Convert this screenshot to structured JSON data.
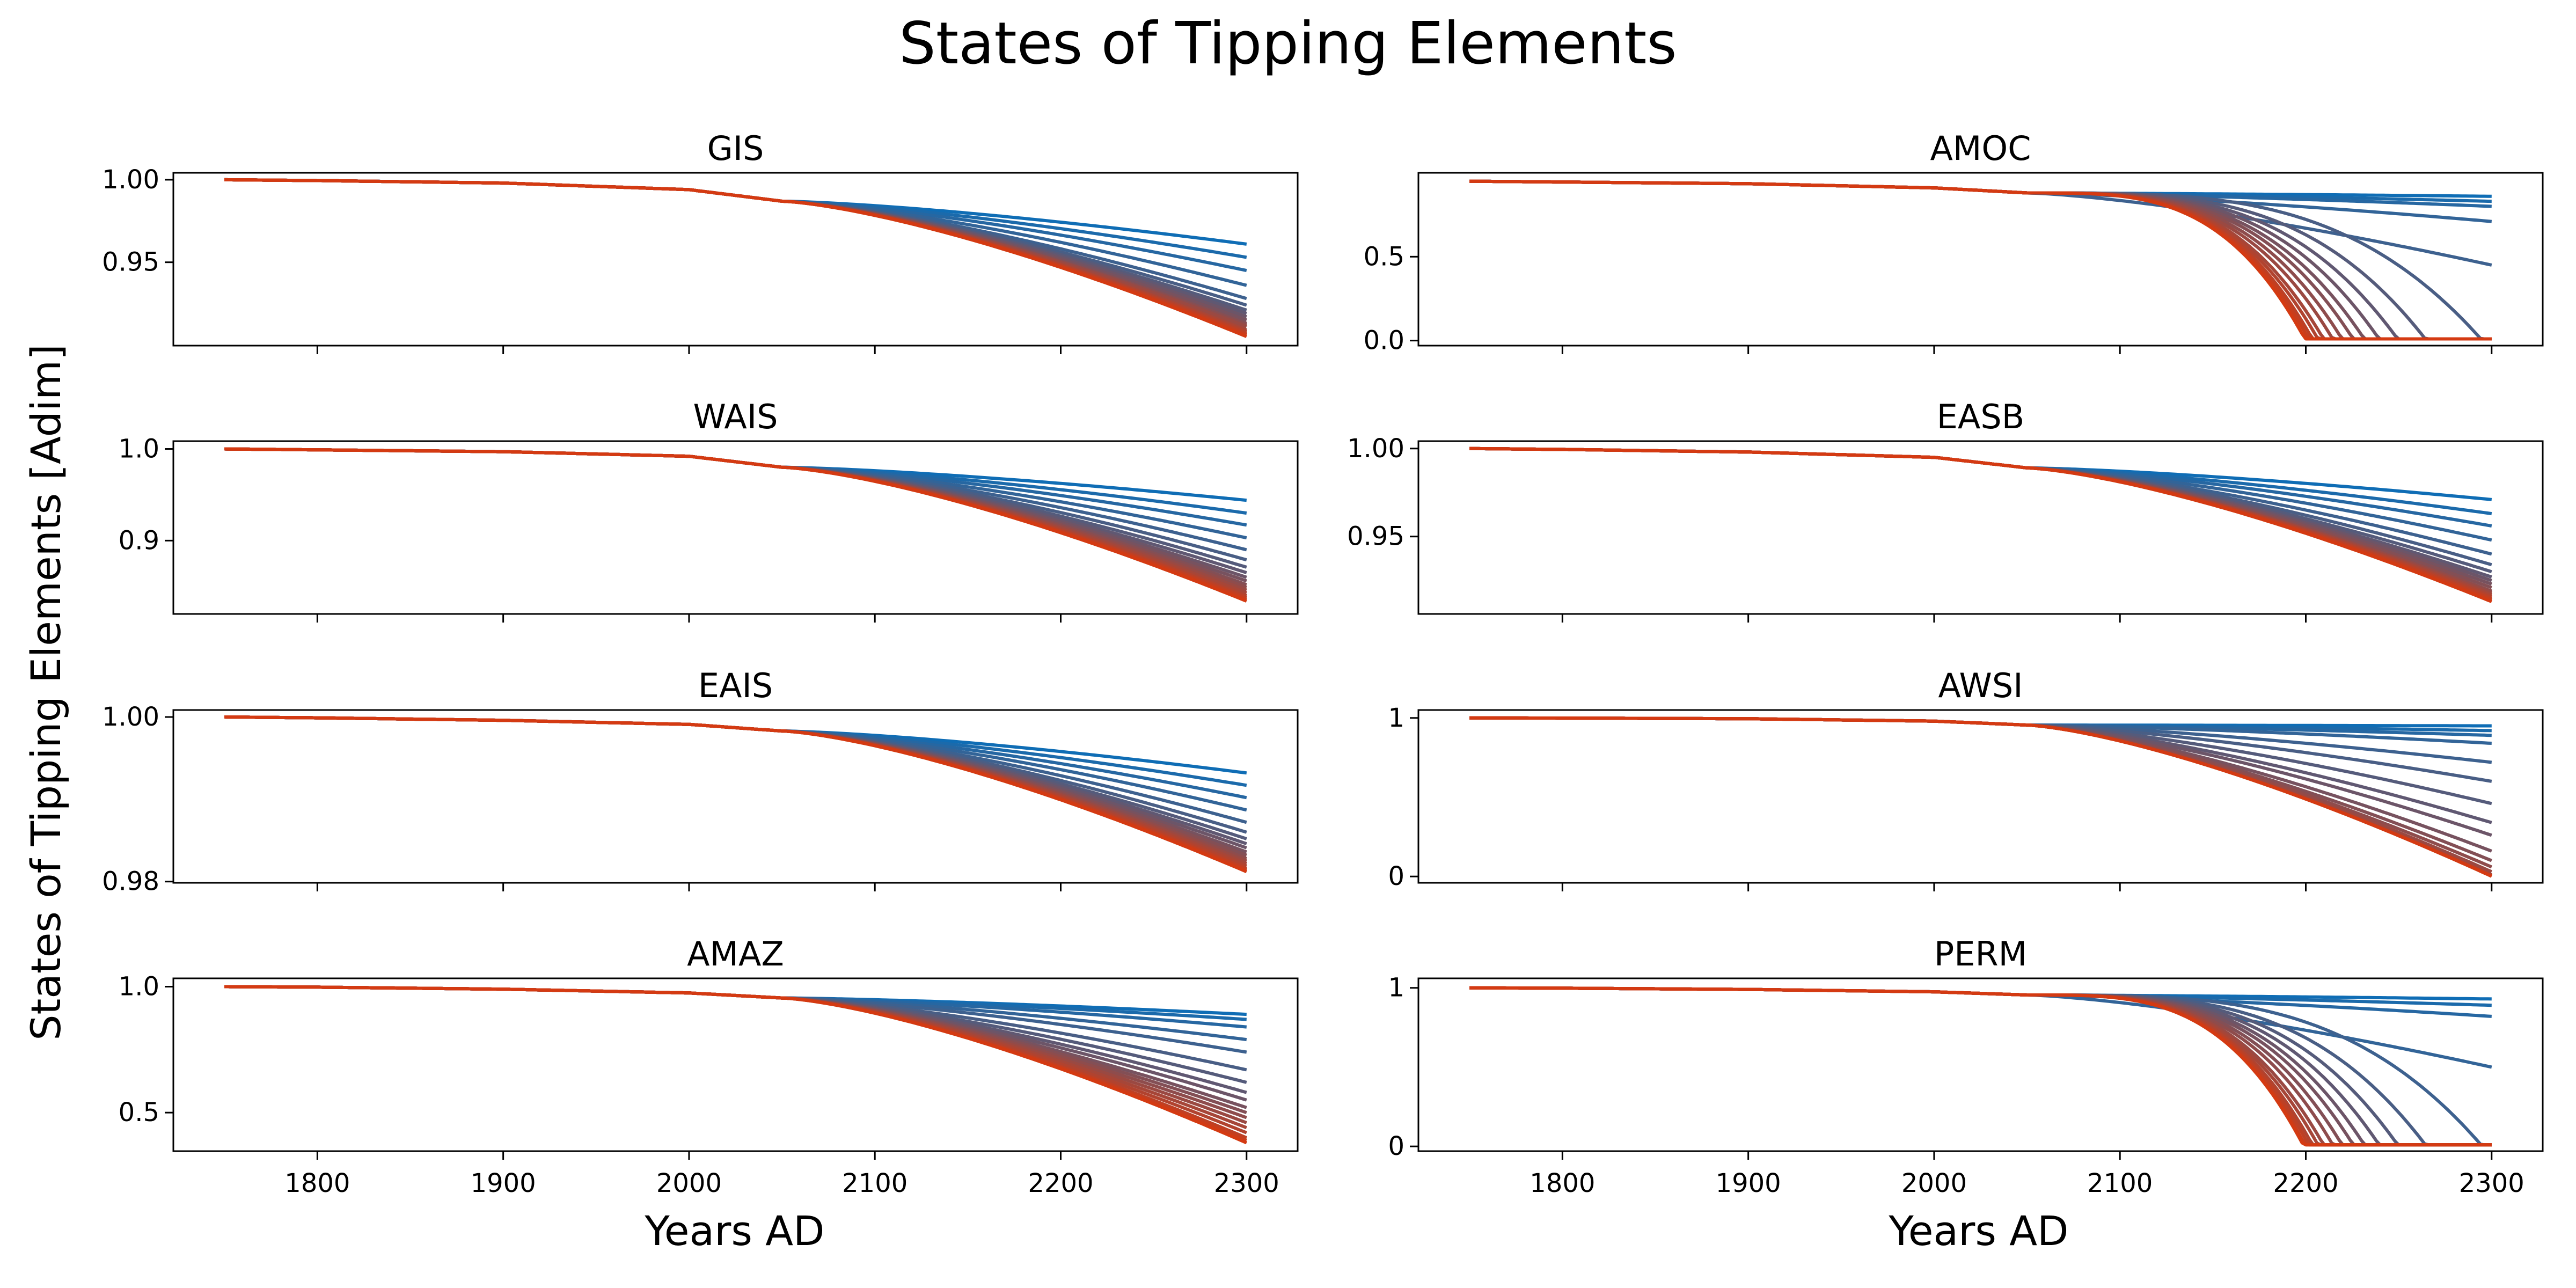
{
  "figure": {
    "title": "States of Tipping Elements",
    "ylabel": "States of Tipping Elements [Adim]",
    "xlabels": [
      "Years AD",
      "Years AD"
    ]
  },
  "colors": {
    "start": "#0f6db5",
    "end": "#d43a12",
    "axis": "#000000",
    "background": "#ffffff"
  },
  "chart_data": [
    {
      "type": "line",
      "title": "GIS",
      "x_range": [
        1750,
        2300
      ],
      "xlim": [
        1722.5,
        2327.5
      ],
      "ylim": [
        0.8995,
        1.0042
      ],
      "yticks": [
        {
          "v": 1.0,
          "label": "1.00"
        },
        {
          "v": 0.95,
          "label": "0.95"
        }
      ],
      "xticks": [
        1800,
        1900,
        2000,
        2100,
        2200,
        2300
      ],
      "show_xticklabels": false,
      "n_series": 18,
      "final_values": [
        0.961,
        0.953,
        0.945,
        0.936,
        0.928,
        0.924,
        0.921,
        0.919,
        0.917,
        0.915,
        0.913,
        0.912,
        0.911,
        0.909,
        0.908,
        0.907,
        0.906,
        0.905
      ],
      "shared_values": {
        "x": [
          1750,
          1800,
          1900,
          2000,
          2050
        ],
        "y": [
          1.0,
          0.9995,
          0.998,
          0.994,
          0.987
        ]
      },
      "collapse_year": null
    },
    {
      "type": "line",
      "title": "AMOC",
      "x_range": [
        1750,
        2300
      ],
      "xlim": [
        1722.5,
        2327.5
      ],
      "ylim": [
        -0.03,
        1.0
      ],
      "yticks": [
        {
          "v": 0.5,
          "label": "0.5"
        },
        {
          "v": 0.0,
          "label": "0.0"
        }
      ],
      "xticks": [
        1800,
        1900,
        2000,
        2100,
        2200,
        2300
      ],
      "show_xticklabels": false,
      "n_series": 18,
      "final_values": [
        0.86,
        0.83,
        0.8,
        0.71,
        0.45,
        0.01,
        0.01,
        0.01,
        0.01,
        0.01,
        0.01,
        0.01,
        0.01,
        0.01,
        0.01,
        0.01,
        0.01,
        0.01
      ],
      "shared_values": {
        "x": [
          1750,
          1800,
          1900,
          2000,
          2050
        ],
        "y": [
          0.95,
          0.945,
          0.935,
          0.91,
          0.88
        ]
      },
      "collapse_year": [
        null,
        null,
        null,
        null,
        null,
        2295,
        2265,
        2250,
        2240,
        2232,
        2226,
        2220,
        2215,
        2210,
        2207,
        2204,
        2202,
        2200
      ]
    },
    {
      "type": "line",
      "title": "WAIS",
      "x_range": [
        1750,
        2300
      ],
      "xlim": [
        1722.5,
        2327.5
      ],
      "ylim": [
        0.82,
        1.0085
      ],
      "yticks": [
        {
          "v": 1.0,
          "label": "1.0"
        },
        {
          "v": 0.9,
          "label": "0.9"
        }
      ],
      "xticks": [
        1800,
        1900,
        2000,
        2100,
        2200,
        2300
      ],
      "show_xticklabels": false,
      "n_series": 18,
      "final_values": [
        0.944,
        0.93,
        0.917,
        0.903,
        0.89,
        0.879,
        0.871,
        0.865,
        0.86,
        0.856,
        0.852,
        0.849,
        0.846,
        0.843,
        0.84,
        0.838,
        0.836,
        0.834
      ],
      "shared_values": {
        "x": [
          1750,
          1800,
          1900,
          2000,
          2050
        ],
        "y": [
          1.0,
          0.999,
          0.997,
          0.992,
          0.98
        ]
      },
      "collapse_year": null
    },
    {
      "type": "line",
      "title": "EASB",
      "x_range": [
        1750,
        2300
      ],
      "xlim": [
        1722.5,
        2327.5
      ],
      "ylim": [
        0.906,
        1.0042
      ],
      "yticks": [
        {
          "v": 1.0,
          "label": "1.00"
        },
        {
          "v": 0.95,
          "label": "0.95"
        }
      ],
      "xticks": [
        1800,
        1900,
        2000,
        2100,
        2200,
        2300
      ],
      "show_xticklabels": false,
      "n_series": 18,
      "final_values": [
        0.971,
        0.963,
        0.956,
        0.948,
        0.94,
        0.934,
        0.93,
        0.927,
        0.925,
        0.923,
        0.921,
        0.919,
        0.918,
        0.917,
        0.916,
        0.915,
        0.914,
        0.913
      ],
      "shared_values": {
        "x": [
          1750,
          1800,
          1900,
          2000,
          2050
        ],
        "y": [
          1.0,
          0.9995,
          0.998,
          0.995,
          0.989
        ]
      },
      "collapse_year": null
    },
    {
      "type": "line",
      "title": "EAIS",
      "x_range": [
        1750,
        2300
      ],
      "xlim": [
        1722.5,
        2327.5
      ],
      "ylim": [
        0.97985,
        1.00085
      ],
      "yticks": [
        {
          "v": 1.0,
          "label": "1.00"
        },
        {
          "v": 0.98,
          "label": "0.98"
        }
      ],
      "xticks": [
        1800,
        1900,
        2000,
        2100,
        2200,
        2300
      ],
      "show_xticklabels": false,
      "n_series": 18,
      "final_values": [
        0.9932,
        0.9917,
        0.9902,
        0.9887,
        0.9872,
        0.986,
        0.9852,
        0.9846,
        0.9841,
        0.9836,
        0.9832,
        0.9828,
        0.9825,
        0.9822,
        0.9819,
        0.9816,
        0.9814,
        0.9812
      ],
      "shared_values": {
        "x": [
          1750,
          1800,
          1900,
          2000,
          2050
        ],
        "y": [
          1.0,
          0.9999,
          0.9996,
          0.9991,
          0.9983
        ]
      },
      "collapse_year": null
    },
    {
      "type": "line",
      "title": "AWSI",
      "x_range": [
        1750,
        2300
      ],
      "xlim": [
        1722.5,
        2327.5
      ],
      "ylim": [
        -0.04,
        1.05
      ],
      "yticks": [
        {
          "v": 1.0,
          "label": "1"
        },
        {
          "v": 0.0,
          "label": "0"
        }
      ],
      "xticks": [
        1800,
        1900,
        2000,
        2100,
        2200,
        2300
      ],
      "show_xticklabels": false,
      "n_series": 18,
      "final_values": [
        0.95,
        0.92,
        0.89,
        0.84,
        0.72,
        0.6,
        0.46,
        0.34,
        0.26,
        0.16,
        0.1,
        0.06,
        0.03,
        0.01,
        0.005,
        0.003,
        0.002,
        0.001
      ],
      "shared_values": {
        "x": [
          1750,
          1800,
          1900,
          2000,
          2050
        ],
        "y": [
          1.0,
          0.999,
          0.995,
          0.98,
          0.955
        ]
      },
      "collapse_year": null
    },
    {
      "type": "line",
      "title": "AMAZ",
      "x_range": [
        1750,
        2300
      ],
      "xlim": [
        1722.5,
        2327.5
      ],
      "ylim": [
        0.347,
        1.033
      ],
      "yticks": [
        {
          "v": 1.0,
          "label": "1.0"
        },
        {
          "v": 0.5,
          "label": "0.5"
        }
      ],
      "xticks": [
        1800,
        1900,
        2000,
        2100,
        2200,
        2300
      ],
      "show_xticklabels": true,
      "n_series": 18,
      "final_values": [
        0.89,
        0.87,
        0.84,
        0.79,
        0.74,
        0.67,
        0.62,
        0.58,
        0.55,
        0.52,
        0.5,
        0.48,
        0.46,
        0.44,
        0.42,
        0.4,
        0.39,
        0.38
      ],
      "shared_values": {
        "x": [
          1750,
          1800,
          1900,
          2000,
          2050
        ],
        "y": [
          1.0,
          0.998,
          0.99,
          0.975,
          0.955
        ]
      },
      "collapse_year": null
    },
    {
      "type": "line",
      "title": "PERM",
      "x_range": [
        1750,
        2300
      ],
      "xlim": [
        1722.5,
        2327.5
      ],
      "ylim": [
        -0.03,
        1.06
      ],
      "yticks": [
        {
          "v": 1.0,
          "label": "1"
        },
        {
          "v": 0.0,
          "label": "0"
        }
      ],
      "xticks": [
        1800,
        1900,
        2000,
        2100,
        2200,
        2300
      ],
      "show_xticklabels": true,
      "n_series": 18,
      "final_values": [
        0.93,
        0.89,
        0.82,
        0.5,
        0.01,
        0.01,
        0.01,
        0.01,
        0.01,
        0.01,
        0.01,
        0.01,
        0.01,
        0.01,
        0.01,
        0.01,
        0.01,
        0.01
      ],
      "shared_values": {
        "x": [
          1750,
          1800,
          1900,
          2000,
          2050
        ],
        "y": [
          1.0,
          0.998,
          0.99,
          0.975,
          0.955
        ]
      },
      "collapse_year": [
        null,
        null,
        null,
        null,
        2295,
        2265,
        2250,
        2240,
        2232,
        2226,
        2220,
        2215,
        2210,
        2207,
        2204,
        2202,
        2200,
        2199
      ]
    }
  ]
}
